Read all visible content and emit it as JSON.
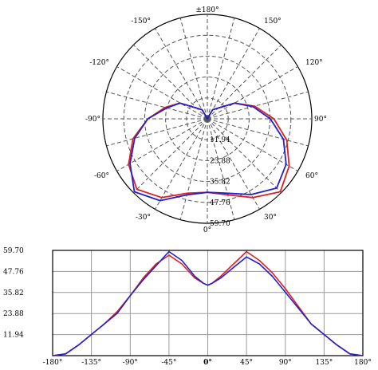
{
  "chart_data": [
    {
      "type": "polar",
      "angle_ticks": [
        "±180°",
        "150°",
        "120°",
        "90°",
        "60°",
        "30°",
        "0°",
        "-30°",
        "-60°",
        "-90°",
        "-120°",
        "-150°"
      ],
      "radial_ticks": [
        "11.94",
        "23.88",
        "35.82",
        "47.76",
        "59.70"
      ],
      "rlim": [
        0,
        59.7
      ],
      "grid": true,
      "series": [
        {
          "color": "#e02020",
          "angles": [
            -180,
            -150,
            -120,
            -105,
            -90,
            -75,
            -60,
            -45,
            -30,
            -15,
            0,
            15,
            30,
            45,
            60,
            75,
            90,
            105,
            120,
            150,
            180
          ],
          "values": [
            0,
            6,
            18,
            25,
            34,
            44,
            52,
            57,
            52,
            44,
            42,
            45,
            52,
            59,
            54,
            47,
            38,
            28,
            18,
            6,
            0
          ]
        },
        {
          "color": "#2020d0",
          "angles": [
            -180,
            -150,
            -120,
            -105,
            -90,
            -75,
            -60,
            -45,
            -30,
            -15,
            0,
            15,
            30,
            45,
            60,
            75,
            90,
            105,
            120,
            150,
            180
          ],
          "values": [
            0,
            6,
            18,
            24,
            34,
            43,
            51,
            59,
            54,
            45,
            42,
            44,
            50,
            56,
            52,
            45,
            36,
            27,
            18,
            6,
            0
          ]
        }
      ]
    },
    {
      "type": "line",
      "x_ticks": [
        "-180°",
        "-135°",
        "-90°",
        "-45°",
        "0°",
        "45°",
        "90°",
        "135°",
        "180°"
      ],
      "y_ticks": [
        "11.94",
        "23.88",
        "35.82",
        "47.76",
        "59.70"
      ],
      "xlim": [
        -180,
        180
      ],
      "ylim": [
        0,
        59.7
      ],
      "grid": true,
      "series": [
        {
          "color": "#e02020",
          "x": [
            -180,
            -165,
            -150,
            -135,
            -120,
            -105,
            -90,
            -75,
            -60,
            -45,
            -30,
            -15,
            -5,
            0,
            5,
            15,
            30,
            45,
            60,
            75,
            90,
            105,
            120,
            135,
            150,
            165,
            180
          ],
          "y": [
            0,
            1,
            6,
            12,
            18,
            25,
            34,
            44,
            52,
            57,
            52,
            44,
            41,
            40,
            41,
            45,
            52,
            59,
            54,
            47,
            38,
            28,
            18,
            12,
            6,
            1,
            0
          ]
        },
        {
          "color": "#2020d0",
          "x": [
            -180,
            -165,
            -150,
            -135,
            -120,
            -105,
            -90,
            -75,
            -60,
            -45,
            -30,
            -15,
            -5,
            0,
            5,
            15,
            30,
            45,
            60,
            75,
            90,
            105,
            120,
            135,
            150,
            165,
            180
          ],
          "y": [
            0,
            1,
            6,
            12,
            18,
            24,
            34,
            43,
            51,
            59,
            54,
            45,
            41,
            40,
            41,
            44,
            50,
            56,
            52,
            45,
            36,
            27,
            18,
            12,
            6,
            1,
            0
          ]
        }
      ]
    }
  ]
}
